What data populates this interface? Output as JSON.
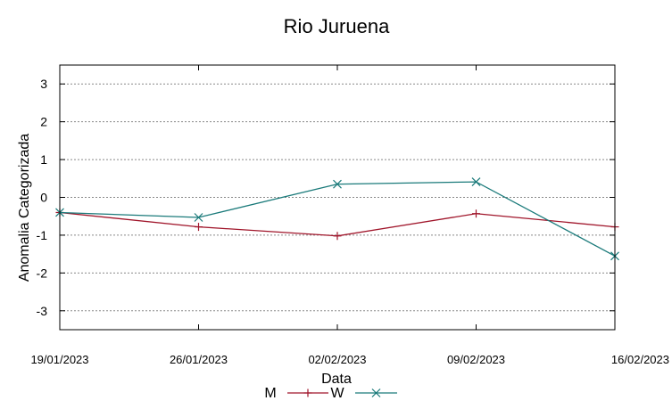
{
  "chart_data": {
    "type": "line",
    "title": "Rio Juruena",
    "xlabel": "Data",
    "ylabel": "Anomalia Categorizada",
    "categories": [
      "19/01/2023",
      "26/01/2023",
      "02/02/2023",
      "09/02/2023",
      "16/02/2023"
    ],
    "ylim": [
      -3.5,
      3.5
    ],
    "yticks": [
      3,
      2,
      1,
      0,
      -1,
      -2,
      -3
    ],
    "ytick_labels": [
      "3",
      "2",
      "1",
      "0",
      "-1",
      "-2",
      "-3"
    ],
    "grid": true,
    "legend_position": "bottom-center",
    "series": [
      {
        "name": "M",
        "color": "#a0152a",
        "marker": "plus",
        "values": [
          -0.4,
          -0.78,
          -1.02,
          -0.43,
          -0.78
        ]
      },
      {
        "name": "W",
        "color": "#1a7a7a",
        "marker": "cross",
        "values": [
          -0.4,
          -0.53,
          0.35,
          0.41,
          -1.55
        ]
      }
    ]
  }
}
